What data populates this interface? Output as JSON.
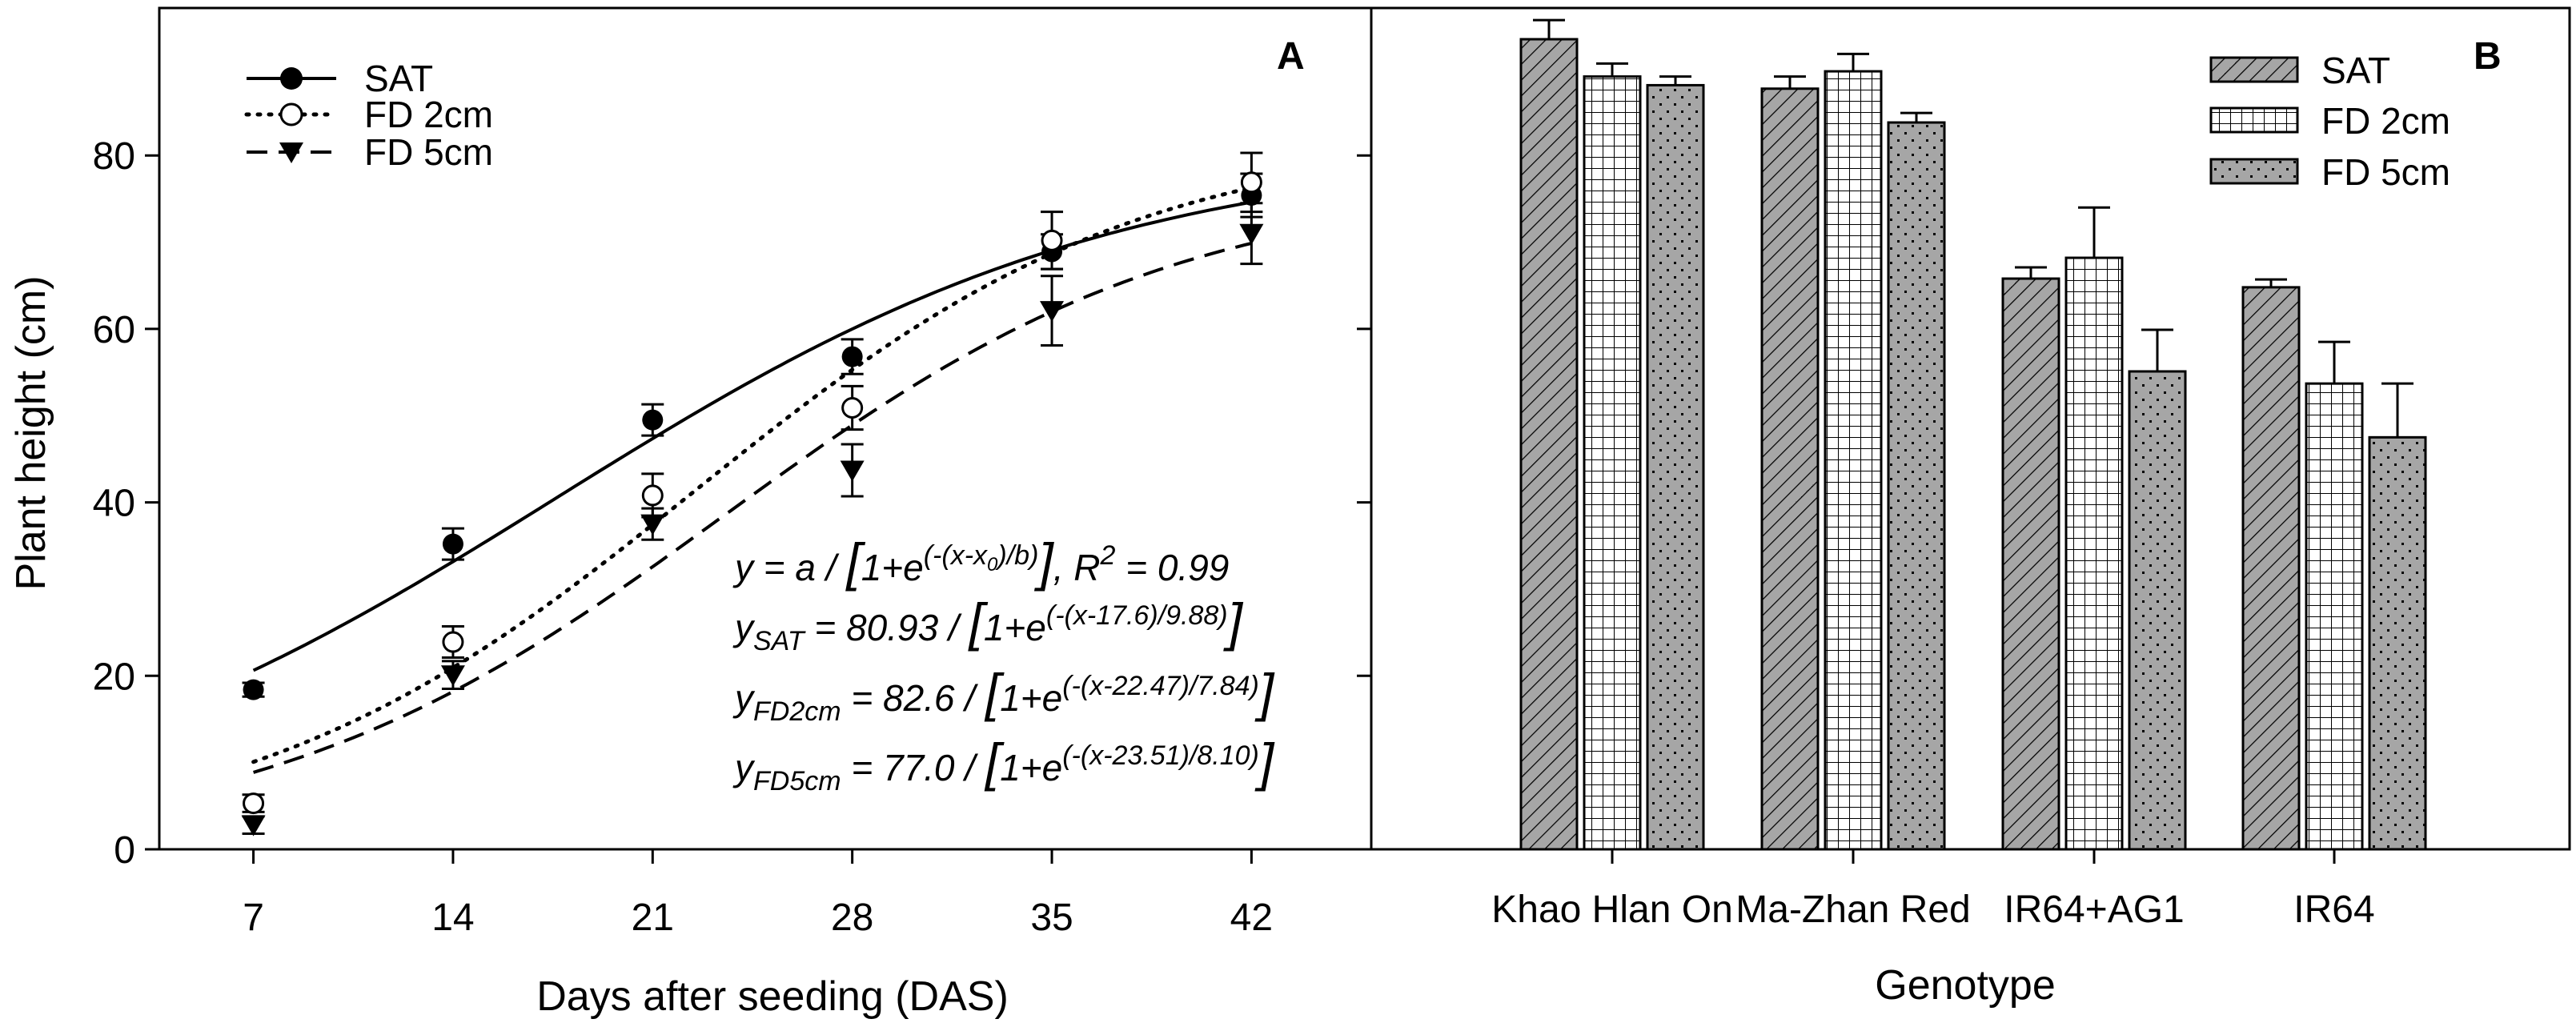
{
  "chart_data": [
    {
      "type": "scatter",
      "panel_label": "A",
      "xlabel": "Days after seeding (DAS)",
      "ylabel": "Plant height (cm)",
      "x": [
        7,
        14,
        21,
        28,
        35,
        42
      ],
      "xticks": [
        "7",
        "14",
        "21",
        "28",
        "35",
        "42"
      ],
      "yticks": [
        "0",
        "20",
        "40",
        "60",
        "80"
      ],
      "xlim": [
        3.7,
        46.2
      ],
      "ylim": [
        0,
        97
      ],
      "legend_position": "top-left",
      "series": [
        {
          "name": "SAT",
          "marker": "filled-circle",
          "line": "solid",
          "values": [
            18.4,
            35.2,
            49.5,
            56.8,
            68.9,
            75.4
          ],
          "errors": [
            0.8,
            1.8,
            1.8,
            2.0,
            2.0,
            2.5
          ],
          "fit": {
            "a": 80.93,
            "x0": 17.6,
            "b": 9.88
          }
        },
        {
          "name": "FD 2cm",
          "marker": "open-circle",
          "line": "dotted",
          "values": [
            5.3,
            23.9,
            40.8,
            50.9,
            70.2,
            76.9
          ],
          "errors": [
            1.0,
            1.8,
            2.5,
            2.5,
            3.3,
            3.4
          ],
          "fit": {
            "a": 82.6,
            "x0": 22.47,
            "b": 7.84
          }
        },
        {
          "name": "FD 5cm",
          "marker": "filled-triangle-down",
          "line": "dashed",
          "values": [
            2.8,
            20.1,
            37.5,
            43.7,
            62.1,
            71.0
          ],
          "errors": [
            1.0,
            1.6,
            1.8,
            3.0,
            4.0,
            3.5
          ],
          "fit": {
            "a": 77.0,
            "x0": 23.51,
            "b": 8.1
          }
        }
      ],
      "equations": {
        "general": {
          "y": "y = a / ",
          "lb": "[",
          "base": "1+e",
          "exp1": "(-(x-x",
          "exp_sub": "0",
          "exp2": ")/b)",
          "rb": "]",
          "r": ", R",
          "r_sup": "2",
          "r_val": " = 0.99"
        },
        "sat": {
          "y": "y",
          "sub": "SAT",
          "rest": " = 80.93 / ",
          "lb": "[",
          "base": "1+e",
          "exp": "(-(x-17.6)/9.88)",
          "rb": "]"
        },
        "fd2": {
          "y": "y",
          "sub": "FD2cm",
          "rest": " = 82.6 / ",
          "lb": "[",
          "base": "1+e",
          "exp": "(-(x-22.47)/7.84)",
          "rb": "]"
        },
        "fd5": {
          "y": "y",
          "sub": "FD5cm",
          "rest": " = 77.0 / ",
          "lb": "[",
          "base": "1+e",
          "exp": "(-(x-23.51)/8.10)",
          "rb": "]"
        }
      }
    },
    {
      "type": "bar",
      "panel_label": "B",
      "xlabel": "Genotype",
      "ylabel": "Plant height (cm)",
      "categories": [
        "Khao Hlan On",
        "Ma-Zhan Red",
        "IR64+AG1",
        "IR64"
      ],
      "ylim": [
        0,
        97
      ],
      "legend_position": "top-right",
      "series": [
        {
          "name": "SAT",
          "pattern": "diagonal-hatch",
          "values": [
            93.4,
            87.7,
            65.8,
            64.8
          ],
          "errors": [
            2.2,
            1.4,
            1.3,
            0.9
          ]
        },
        {
          "name": "FD 2cm",
          "pattern": "grid",
          "values": [
            89.1,
            89.7,
            68.2,
            53.7
          ],
          "errors": [
            1.5,
            2.0,
            5.8,
            4.8
          ]
        },
        {
          "name": "FD 5cm",
          "pattern": "dots",
          "values": [
            88.1,
            83.8,
            55.1,
            47.5
          ],
          "errors": [
            1.0,
            1.1,
            4.8,
            6.2
          ]
        }
      ]
    }
  ]
}
